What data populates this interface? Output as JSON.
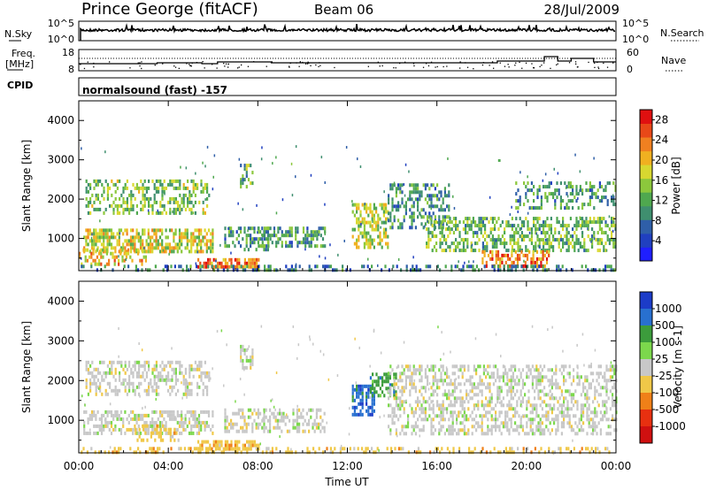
{
  "header": {
    "station": "Prince George (fitACF)",
    "beam": "Beam 06",
    "date": "28/Jul/2009"
  },
  "nsky_panel": {
    "left_label": "N.Sky",
    "right_label": "N.Search",
    "left_ticks": [
      "10^5",
      "10^0"
    ],
    "right_ticks": [
      "10^5",
      "10^0"
    ]
  },
  "freq_panel": {
    "left_label_line1": "Freq.",
    "left_label_line2": "[MHz]",
    "right_label": "Nave",
    "left_ticks": [
      "18",
      "8"
    ],
    "right_ticks": [
      "60",
      "0"
    ]
  },
  "cpid_panel": {
    "label": "CPID",
    "mode_text": "normalsound (fast) -157"
  },
  "chart_data": [
    {
      "type": "heatmap",
      "name": "power",
      "ylabel": "Slant Range [km]",
      "ylim": [
        180,
        4500
      ],
      "y_ticks": [
        1000,
        2000,
        3000,
        4000
      ],
      "xlim": [
        0,
        24
      ],
      "colorbar": {
        "label": "Power [dB]",
        "range": [
          0,
          30
        ],
        "ticks": [
          4,
          8,
          12,
          16,
          20,
          24,
          28
        ],
        "colors": [
          "#1f1fff",
          "#2040c0",
          "#2f5fa8",
          "#3f8f6f",
          "#4fa84f",
          "#8cc83c",
          "#d8d830",
          "#f0b020",
          "#f08020",
          "#e84818",
          "#e01010"
        ]
      },
      "echo_regions": [
        {
          "t0": 0.3,
          "t1": 5.8,
          "r0": 1650,
          "r1": 2500,
          "p": 14,
          "d": 0.45
        },
        {
          "t0": 0.2,
          "t1": 6.0,
          "r0": 700,
          "r1": 1250,
          "p": 18,
          "d": 0.6
        },
        {
          "t0": 0.0,
          "t1": 3.0,
          "r0": 350,
          "r1": 750,
          "p": 20,
          "d": 0.4
        },
        {
          "t0": 6.5,
          "t1": 8.5,
          "r0": 700,
          "r1": 1300,
          "p": 10,
          "d": 0.45
        },
        {
          "t0": 8.0,
          "t1": 11.0,
          "r0": 800,
          "r1": 1300,
          "p": 10,
          "d": 0.5
        },
        {
          "t0": 5.3,
          "t1": 8.0,
          "r0": 250,
          "r1": 500,
          "p": 24,
          "d": 0.6
        },
        {
          "t0": 7.2,
          "t1": 7.8,
          "r0": 2300,
          "r1": 2900,
          "p": 12,
          "d": 0.5
        },
        {
          "t0": 12.2,
          "t1": 13.8,
          "r0": 800,
          "r1": 1900,
          "p": 16,
          "d": 0.55
        },
        {
          "t0": 13.8,
          "t1": 16.5,
          "r0": 1300,
          "r1": 2400,
          "p": 10,
          "d": 0.45
        },
        {
          "t0": 15.5,
          "t1": 24.0,
          "r0": 650,
          "r1": 1550,
          "p": 13,
          "d": 0.5
        },
        {
          "t0": 18.0,
          "t1": 21.0,
          "r0": 300,
          "r1": 700,
          "p": 24,
          "d": 0.45
        },
        {
          "t0": 19.5,
          "t1": 24.0,
          "r0": 1800,
          "r1": 2450,
          "p": 10,
          "d": 0.35
        },
        {
          "t0": 0.0,
          "t1": 24.0,
          "r0": 180,
          "r1": 330,
          "p": 8,
          "d": 0.35
        }
      ]
    },
    {
      "type": "heatmap",
      "name": "velocity",
      "ylabel": "Slant Range [km]",
      "ylim": [
        180,
        4500
      ],
      "y_ticks": [
        1000,
        2000,
        3000,
        4000
      ],
      "xlim": [
        0,
        24
      ],
      "xlabel": "Time UT",
      "x_tick_labels": [
        "00:00",
        "04:00",
        "08:00",
        "12:00",
        "16:00",
        "20:00",
        "00:00"
      ],
      "colorbar": {
        "label": "Velocity [m s-1]",
        "ticks": [
          "1000",
          "500",
          "100",
          "25",
          "-25",
          "-100",
          "-500",
          "-1000"
        ],
        "colors": [
          "#1c3cc8",
          "#2870d0",
          "#3c9c3c",
          "#7cd84c",
          "#c8c8c8",
          "#f0c848",
          "#f08018",
          "#e83010",
          "#d01010"
        ]
      },
      "echo_regions": [
        {
          "t0": 0.3,
          "t1": 5.8,
          "r0": 1650,
          "r1": 2500,
          "v": 4,
          "d": 0.45
        },
        {
          "t0": 0.2,
          "t1": 6.0,
          "r0": 700,
          "r1": 1250,
          "v": 4,
          "d": 0.55
        },
        {
          "t0": 2.5,
          "t1": 4.5,
          "r0": 500,
          "r1": 900,
          "v": 5,
          "d": 0.35
        },
        {
          "t0": 5.3,
          "t1": 8.0,
          "r0": 250,
          "r1": 500,
          "v": 5,
          "d": 0.6
        },
        {
          "t0": 6.5,
          "t1": 11.0,
          "r0": 700,
          "r1": 1300,
          "v": 4,
          "d": 0.45
        },
        {
          "t0": 7.2,
          "t1": 7.8,
          "r0": 2300,
          "r1": 2900,
          "v": 4,
          "d": 0.5
        },
        {
          "t0": 12.2,
          "t1": 13.2,
          "r0": 1100,
          "r1": 1900,
          "v": 1,
          "d": 0.6
        },
        {
          "t0": 13.0,
          "t1": 14.2,
          "r0": 1600,
          "r1": 2200,
          "v": 2,
          "d": 0.5
        },
        {
          "t0": 13.8,
          "t1": 24.0,
          "r0": 700,
          "r1": 2400,
          "v": 4,
          "d": 0.45
        },
        {
          "t0": 0.0,
          "t1": 24.0,
          "r0": 180,
          "r1": 330,
          "v": 5,
          "d": 0.35
        }
      ]
    }
  ]
}
